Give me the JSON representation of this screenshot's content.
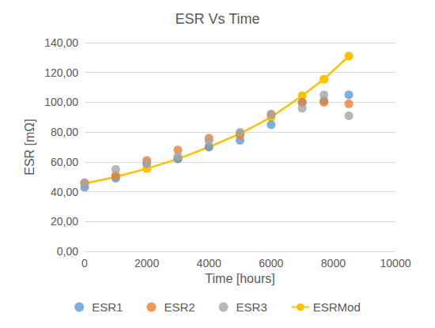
{
  "chart_data": {
    "type": "scatter",
    "title": "ESR Vs Time",
    "x_label": "Time [hours]",
    "y_label": "ESR [mΩ]",
    "x": [
      0,
      1000,
      2000,
      3000,
      4000,
      5000,
      6000,
      7000,
      7700,
      8500
    ],
    "series": [
      {
        "name": "ESR1",
        "color": "#5b9bd5",
        "type": "scatter",
        "marker": "circle",
        "values": [
          43,
          49,
          59,
          62,
          70,
          74.5,
          85,
          100,
          101,
          105
        ]
      },
      {
        "name": "ESR2",
        "color": "#ed7d31",
        "type": "scatter",
        "marker": "circle",
        "values": [
          46,
          51,
          61,
          68,
          76,
          78,
          92,
          100,
          100,
          99
        ]
      },
      {
        "name": "ESR3",
        "color": "#a5a5a5",
        "type": "scatter",
        "marker": "circle",
        "values": [
          46,
          55,
          59,
          64,
          74,
          80,
          92,
          96,
          105,
          91
        ]
      },
      {
        "name": "ESRMod",
        "color": "#ffc000",
        "type": "line",
        "marker": "circle",
        "line_style": "solid",
        "values": [
          45.5,
          50,
          55.5,
          62,
          70,
          79,
          90,
          104.5,
          115.5,
          131
        ]
      }
    ],
    "xlim": [
      0,
      10000
    ],
    "xticks": [
      0,
      2000,
      4000,
      6000,
      8000,
      10000
    ],
    "ylim": [
      0,
      140
    ],
    "yticks": [
      {
        "value": 0,
        "label": "0,00"
      },
      {
        "value": 20,
        "label": "20,00"
      },
      {
        "value": 40,
        "label": "40,00"
      },
      {
        "value": 60,
        "label": "60,00"
      },
      {
        "value": 80,
        "label": "80,00"
      },
      {
        "value": 100,
        "label": "100,00"
      },
      {
        "value": 120,
        "label": "120,00"
      },
      {
        "value": 140,
        "label": "140,00"
      }
    ],
    "grid": true,
    "legend": "bottom"
  }
}
